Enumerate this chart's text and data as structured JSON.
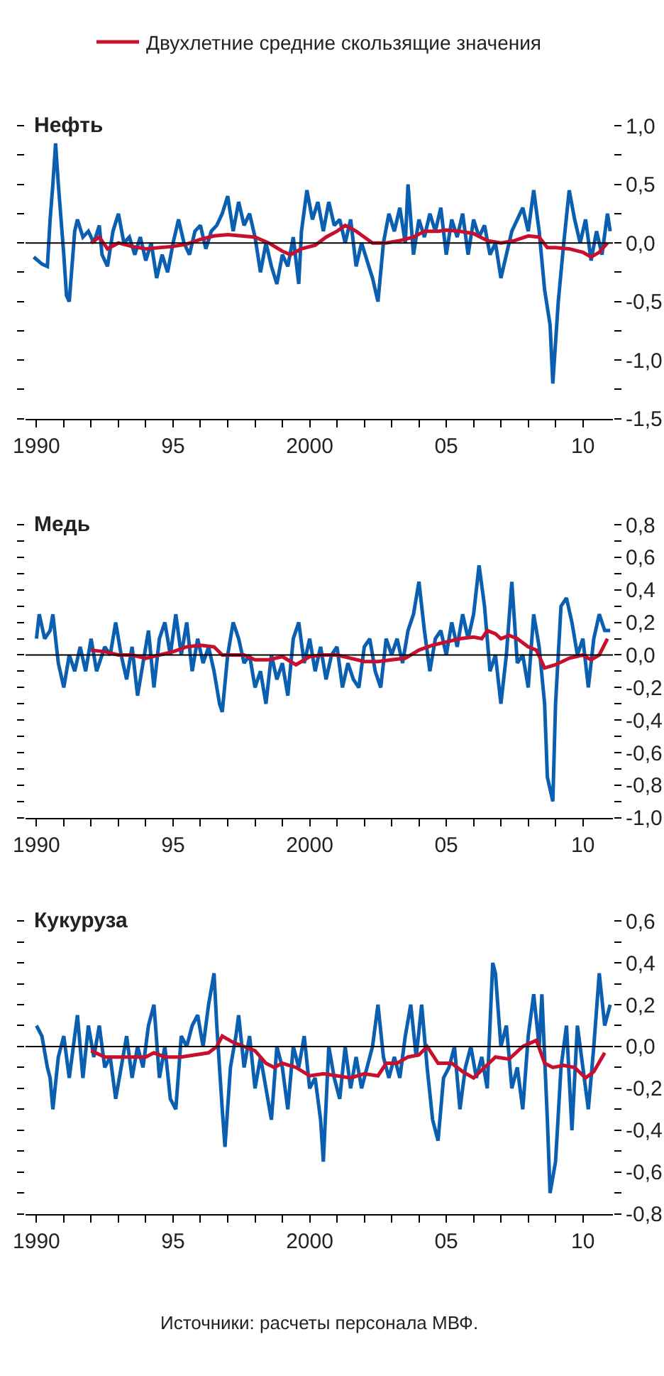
{
  "chart_data": [
    {
      "type": "line",
      "title": "Нефть",
      "legend": "top",
      "xlim": [
        1989.6,
        2011.1
      ],
      "ylim": [
        -1.5,
        1.0
      ],
      "xticks": [
        {
          "value": 1990,
          "label": "1990"
        },
        {
          "value": 1991,
          "label": null
        },
        {
          "value": 1992,
          "label": null
        },
        {
          "value": 1993,
          "label": null
        },
        {
          "value": 1994,
          "label": null
        },
        {
          "value": 1995,
          "label": "95"
        },
        {
          "value": 1996,
          "label": null
        },
        {
          "value": 1997,
          "label": null
        },
        {
          "value": 1998,
          "label": null
        },
        {
          "value": 1999,
          "label": null
        },
        {
          "value": 2000,
          "label": "2000"
        },
        {
          "value": 2001,
          "label": null
        },
        {
          "value": 2002,
          "label": null
        },
        {
          "value": 2003,
          "label": null
        },
        {
          "value": 2004,
          "label": null
        },
        {
          "value": 2005,
          "label": "05"
        },
        {
          "value": 2006,
          "label": null
        },
        {
          "value": 2007,
          "label": null
        },
        {
          "value": 2008,
          "label": null
        },
        {
          "value": 2009,
          "label": null
        },
        {
          "value": 2010,
          "label": "10"
        }
      ],
      "yticks": [
        {
          "value": 1.0,
          "label": "1,0"
        },
        {
          "value": 0.75,
          "label": null
        },
        {
          "value": 0.5,
          "label": "0,5"
        },
        {
          "value": 0.25,
          "label": null
        },
        {
          "value": 0,
          "label": "0,0"
        },
        {
          "value": -0.25,
          "label": null
        },
        {
          "value": -0.5,
          "label": "-0,5"
        },
        {
          "value": -0.75,
          "label": null
        },
        {
          "value": -1.0,
          "label": "-1,0"
        },
        {
          "value": -1.25,
          "label": null
        },
        {
          "value": -1.5,
          "label": "-1,5"
        }
      ],
      "ref_lines": [
        {
          "axis": "y",
          "value": 0,
          "color": "#000000"
        }
      ],
      "series": [
        {
          "color": "#0a5fb0",
          "x": [
            1989.9,
            1990.2,
            1990.4,
            1990.5,
            1990.6,
            1990.7,
            1990.8,
            1990.9,
            1991.0,
            1991.1,
            1991.2,
            1991.3,
            1991.4,
            1991.5,
            1991.7,
            1991.9,
            1992.1,
            1992.3,
            1992.4,
            1992.6,
            1992.8,
            1993.0,
            1993.2,
            1993.4,
            1993.6,
            1993.8,
            1994.0,
            1994.2,
            1994.4,
            1994.6,
            1994.8,
            1995.0,
            1995.2,
            1995.4,
            1995.6,
            1995.8,
            1996.0,
            1996.2,
            1996.4,
            1996.6,
            1996.8,
            1997.0,
            1997.2,
            1997.4,
            1997.6,
            1997.8,
            1998.0,
            1998.2,
            1998.4,
            1998.6,
            1998.8,
            1999.0,
            1999.2,
            1999.4,
            1999.6,
            1999.7,
            1999.9,
            2000.1,
            2000.3,
            2000.5,
            2000.7,
            2000.9,
            2001.1,
            2001.3,
            2001.5,
            2001.7,
            2001.9,
            2002.1,
            2002.3,
            2002.5,
            2002.7,
            2002.9,
            2003.1,
            2003.3,
            2003.5,
            2003.6,
            2003.8,
            2004.0,
            2004.2,
            2004.4,
            2004.6,
            2004.8,
            2005.0,
            2005.2,
            2005.4,
            2005.6,
            2005.8,
            2006.0,
            2006.2,
            2006.4,
            2006.6,
            2006.8,
            2007.0,
            2007.2,
            2007.4,
            2007.6,
            2007.8,
            2008.0,
            2008.2,
            2008.4,
            2008.6,
            2008.8,
            2008.9,
            2009.1,
            2009.3,
            2009.5,
            2009.7,
            2009.9,
            2010.1,
            2010.3,
            2010.5,
            2010.7,
            2010.9,
            2011.0
          ],
          "values": [
            -0.12,
            -0.18,
            -0.2,
            0.2,
            0.5,
            0.85,
            0.5,
            0.2,
            -0.1,
            -0.45,
            -0.5,
            -0.2,
            0.1,
            0.2,
            0.05,
            0.1,
            0.0,
            0.15,
            -0.1,
            -0.2,
            0.1,
            0.25,
            0.0,
            0.05,
            -0.1,
            0.05,
            -0.15,
            0.0,
            -0.3,
            -0.1,
            -0.25,
            0.0,
            0.2,
            0.0,
            -0.1,
            0.1,
            0.15,
            -0.05,
            0.1,
            0.15,
            0.25,
            0.4,
            0.1,
            0.35,
            0.15,
            0.25,
            0.05,
            -0.25,
            0.0,
            -0.2,
            -0.35,
            -0.1,
            -0.2,
            0.05,
            -0.35,
            0.1,
            0.45,
            0.2,
            0.35,
            0.1,
            0.35,
            0.15,
            0.2,
            0.0,
            0.2,
            -0.2,
            0.0,
            -0.15,
            -0.3,
            -0.5,
            0.0,
            0.25,
            0.1,
            0.3,
            0.0,
            0.5,
            -0.1,
            0.2,
            0.05,
            0.25,
            0.1,
            0.3,
            -0.1,
            0.2,
            0.05,
            0.25,
            -0.1,
            0.2,
            0.05,
            0.15,
            -0.1,
            0.0,
            -0.3,
            -0.1,
            0.1,
            0.2,
            0.3,
            0.1,
            0.45,
            0.1,
            -0.4,
            -0.7,
            -1.2,
            -0.5,
            0.0,
            0.45,
            0.2,
            0.0,
            0.2,
            -0.15,
            0.1,
            -0.1,
            0.25,
            0.1
          ]
        },
        {
          "name": "Двухлетние средние скользящие значения",
          "color": "#c8102e",
          "x": [
            1992.0,
            1992.3,
            1992.6,
            1993.0,
            1993.5,
            1994.0,
            1994.5,
            1995.0,
            1995.5,
            1996.0,
            1996.5,
            1997.0,
            1997.5,
            1998.0,
            1998.5,
            1999.0,
            1999.3,
            1999.7,
            2000.2,
            2000.6,
            2001.0,
            2001.3,
            2001.7,
            2002.0,
            2002.3,
            2002.8,
            2003.3,
            2003.8,
            2004.2,
            2004.7,
            2005.0,
            2005.5,
            2006.0,
            2006.5,
            2007.0,
            2007.5,
            2008.0,
            2008.4,
            2008.7,
            2009.0,
            2009.5,
            2010.0,
            2010.3,
            2010.6,
            2010.9
          ],
          "values": [
            0.0,
            0.05,
            -0.05,
            0.0,
            -0.03,
            -0.05,
            -0.04,
            -0.03,
            -0.01,
            0.03,
            0.06,
            0.07,
            0.06,
            0.05,
            0.0,
            -0.07,
            -0.1,
            -0.05,
            -0.02,
            0.05,
            0.1,
            0.15,
            0.1,
            0.05,
            0.0,
            0.0,
            0.02,
            0.05,
            0.1,
            0.1,
            0.11,
            0.1,
            0.08,
            0.02,
            0.0,
            0.02,
            0.06,
            0.05,
            -0.04,
            -0.04,
            -0.05,
            -0.08,
            -0.12,
            -0.08,
            0.0
          ]
        }
      ]
    },
    {
      "type": "line",
      "title": "Медь",
      "xlim": [
        1989.6,
        2011.1
      ],
      "ylim": [
        -1.0,
        0.8
      ],
      "xticks": [
        {
          "value": 1990,
          "label": "1990"
        },
        {
          "value": 1991,
          "label": null
        },
        {
          "value": 1992,
          "label": null
        },
        {
          "value": 1993,
          "label": null
        },
        {
          "value": 1994,
          "label": null
        },
        {
          "value": 1995,
          "label": "95"
        },
        {
          "value": 1996,
          "label": null
        },
        {
          "value": 1997,
          "label": null
        },
        {
          "value": 1998,
          "label": null
        },
        {
          "value": 1999,
          "label": null
        },
        {
          "value": 2000,
          "label": "2000"
        },
        {
          "value": 2001,
          "label": null
        },
        {
          "value": 2002,
          "label": null
        },
        {
          "value": 2003,
          "label": null
        },
        {
          "value": 2004,
          "label": null
        },
        {
          "value": 2005,
          "label": "05"
        },
        {
          "value": 2006,
          "label": null
        },
        {
          "value": 2007,
          "label": null
        },
        {
          "value": 2008,
          "label": null
        },
        {
          "value": 2009,
          "label": null
        },
        {
          "value": 2010,
          "label": "10"
        }
      ],
      "yticks": [
        {
          "value": 0.8,
          "label": "0,8"
        },
        {
          "value": 0.7,
          "label": null
        },
        {
          "value": 0.6,
          "label": "0,6"
        },
        {
          "value": 0.5,
          "label": null
        },
        {
          "value": 0.4,
          "label": "0,4"
        },
        {
          "value": 0.3,
          "label": null
        },
        {
          "value": 0.2,
          "label": "0,2"
        },
        {
          "value": 0.1,
          "label": null
        },
        {
          "value": 0,
          "label": "0,0"
        },
        {
          "value": -0.1,
          "label": null
        },
        {
          "value": -0.2,
          "label": "-0,2"
        },
        {
          "value": -0.3,
          "label": null
        },
        {
          "value": -0.4,
          "label": "-0,4"
        },
        {
          "value": -0.5,
          "label": null
        },
        {
          "value": -0.6,
          "label": "-0,6"
        },
        {
          "value": -0.7,
          "label": null
        },
        {
          "value": -0.8,
          "label": "-0,8"
        },
        {
          "value": -0.9,
          "label": null
        },
        {
          "value": -1.0,
          "label": "-1,0"
        }
      ],
      "ref_lines": [
        {
          "axis": "y",
          "value": 0,
          "color": "#000000"
        }
      ],
      "series": [
        {
          "color": "#0a5fb0",
          "x": [
            1990.0,
            1990.1,
            1990.3,
            1990.5,
            1990.6,
            1990.8,
            1991.0,
            1991.2,
            1991.4,
            1991.6,
            1991.8,
            1992.0,
            1992.2,
            1992.5,
            1992.7,
            1992.9,
            1993.1,
            1993.3,
            1993.5,
            1993.7,
            1993.9,
            1994.1,
            1994.3,
            1994.5,
            1994.7,
            1994.9,
            1995.1,
            1995.3,
            1995.5,
            1995.7,
            1995.9,
            1996.1,
            1996.3,
            1996.5,
            1996.7,
            1996.8,
            1997.0,
            1997.2,
            1997.4,
            1997.6,
            1997.8,
            1998.0,
            1998.2,
            1998.4,
            1998.6,
            1998.8,
            1999.0,
            1999.2,
            1999.4,
            1999.6,
            1999.8,
            2000.0,
            2000.2,
            2000.4,
            2000.6,
            2000.8,
            2001.0,
            2001.2,
            2001.4,
            2001.6,
            2001.8,
            2002.0,
            2002.2,
            2002.4,
            2002.6,
            2002.8,
            2003.0,
            2003.2,
            2003.4,
            2003.6,
            2003.8,
            2004.0,
            2004.2,
            2004.4,
            2004.6,
            2004.8,
            2005.0,
            2005.2,
            2005.4,
            2005.6,
            2005.8,
            2006.0,
            2006.2,
            2006.4,
            2006.6,
            2006.8,
            2007.0,
            2007.2,
            2007.4,
            2007.6,
            2007.8,
            2008.0,
            2008.2,
            2008.4,
            2008.6,
            2008.7,
            2008.9,
            2009.0,
            2009.2,
            2009.4,
            2009.6,
            2009.8,
            2010.0,
            2010.2,
            2010.4,
            2010.6,
            2010.8,
            2011.0
          ],
          "values": [
            0.1,
            0.25,
            0.1,
            0.15,
            0.25,
            -0.05,
            -0.2,
            0.0,
            -0.1,
            0.05,
            -0.1,
            0.1,
            -0.1,
            0.05,
            0.0,
            0.2,
            0.0,
            -0.15,
            0.05,
            -0.25,
            -0.05,
            0.15,
            -0.2,
            0.1,
            0.2,
            0.0,
            0.25,
            0.0,
            0.2,
            -0.1,
            0.1,
            -0.05,
            0.05,
            -0.1,
            -0.3,
            -0.35,
            0.0,
            0.2,
            0.1,
            -0.05,
            0.0,
            -0.2,
            -0.1,
            -0.3,
            0.0,
            -0.15,
            -0.05,
            -0.25,
            0.1,
            0.2,
            -0.05,
            0.1,
            -0.1,
            0.05,
            -0.15,
            0.0,
            0.05,
            -0.2,
            -0.05,
            -0.15,
            -0.2,
            0.05,
            0.1,
            -0.1,
            -0.2,
            0.1,
            0.0,
            0.1,
            -0.05,
            0.15,
            0.25,
            0.45,
            0.15,
            -0.1,
            0.1,
            0.15,
            0.0,
            0.2,
            0.05,
            0.25,
            0.1,
            0.25,
            0.55,
            0.3,
            -0.1,
            0.0,
            -0.3,
            0.0,
            0.45,
            -0.05,
            0.0,
            -0.2,
            0.25,
            0.05,
            -0.3,
            -0.75,
            -0.9,
            -0.3,
            0.3,
            0.35,
            0.2,
            0.0,
            0.1,
            -0.2,
            0.1,
            0.25,
            0.15,
            0.15
          ]
        },
        {
          "color": "#c8102e",
          "x": [
            1992.0,
            1992.5,
            1993.0,
            1993.5,
            1994.0,
            1994.5,
            1995.0,
            1995.5,
            1996.0,
            1996.5,
            1996.8,
            1997.2,
            1997.6,
            1998.0,
            1998.5,
            1999.0,
            1999.5,
            2000.0,
            2000.5,
            2001.0,
            2001.5,
            2002.0,
            2002.5,
            2003.0,
            2003.5,
            2004.0,
            2004.5,
            2005.0,
            2005.5,
            2006.0,
            2006.3,
            2006.5,
            2006.8,
            2007.0,
            2007.3,
            2007.6,
            2008.0,
            2008.3,
            2008.6,
            2009.0,
            2009.5,
            2010.0,
            2010.3,
            2010.6,
            2010.9
          ],
          "values": [
            0.03,
            0.02,
            0.0,
            0.0,
            -0.02,
            0.0,
            0.02,
            0.05,
            0.06,
            0.05,
            0.0,
            0.0,
            0.0,
            -0.03,
            -0.03,
            -0.01,
            -0.06,
            -0.01,
            0.0,
            0.0,
            -0.02,
            -0.04,
            -0.04,
            -0.03,
            -0.02,
            0.03,
            0.06,
            0.08,
            0.1,
            0.11,
            0.1,
            0.15,
            0.13,
            0.1,
            0.12,
            0.1,
            0.05,
            0.03,
            -0.08,
            -0.06,
            -0.02,
            0.0,
            -0.03,
            0.0,
            0.1
          ]
        }
      ]
    },
    {
      "type": "line",
      "title": "Кукуруза",
      "xlim": [
        1989.6,
        2011.1
      ],
      "ylim": [
        -0.8,
        0.6
      ],
      "xticks": [
        {
          "value": 1990,
          "label": "1990"
        },
        {
          "value": 1991,
          "label": null
        },
        {
          "value": 1992,
          "label": null
        },
        {
          "value": 1993,
          "label": null
        },
        {
          "value": 1994,
          "label": null
        },
        {
          "value": 1995,
          "label": "95"
        },
        {
          "value": 1996,
          "label": null
        },
        {
          "value": 1997,
          "label": null
        },
        {
          "value": 1998,
          "label": null
        },
        {
          "value": 1999,
          "label": null
        },
        {
          "value": 2000,
          "label": "2000"
        },
        {
          "value": 2001,
          "label": null
        },
        {
          "value": 2002,
          "label": null
        },
        {
          "value": 2003,
          "label": null
        },
        {
          "value": 2004,
          "label": null
        },
        {
          "value": 2005,
          "label": "05"
        },
        {
          "value": 2006,
          "label": null
        },
        {
          "value": 2007,
          "label": null
        },
        {
          "value": 2008,
          "label": null
        },
        {
          "value": 2009,
          "label": null
        },
        {
          "value": 2010,
          "label": "10"
        }
      ],
      "yticks": [
        {
          "value": 0.6,
          "label": "0,6"
        },
        {
          "value": 0.5,
          "label": null
        },
        {
          "value": 0.4,
          "label": "0,4"
        },
        {
          "value": 0.3,
          "label": null
        },
        {
          "value": 0.2,
          "label": "0,2"
        },
        {
          "value": 0.1,
          "label": null
        },
        {
          "value": 0,
          "label": "0,0"
        },
        {
          "value": -0.1,
          "label": null
        },
        {
          "value": -0.2,
          "label": "-0,2"
        },
        {
          "value": -0.3,
          "label": null
        },
        {
          "value": -0.4,
          "label": "-0,4"
        },
        {
          "value": -0.5,
          "label": null
        },
        {
          "value": -0.6,
          "label": "-0,6"
        },
        {
          "value": -0.7,
          "label": null
        },
        {
          "value": -0.8,
          "label": "-0,8"
        }
      ],
      "ref_lines": [
        {
          "axis": "y",
          "value": 0,
          "color": "#000000"
        }
      ],
      "annotations": [
        "Источники: расчеты персонала МВФ."
      ],
      "series": [
        {
          "color": "#0a5fb0",
          "x": [
            1990.0,
            1990.2,
            1990.4,
            1990.5,
            1990.6,
            1990.8,
            1991.0,
            1991.2,
            1991.4,
            1991.5,
            1991.7,
            1991.9,
            1992.1,
            1992.3,
            1992.5,
            1992.7,
            1992.9,
            1993.1,
            1993.3,
            1993.5,
            1993.7,
            1993.9,
            1994.1,
            1994.3,
            1994.5,
            1994.7,
            1994.9,
            1995.1,
            1995.3,
            1995.5,
            1995.7,
            1995.9,
            1996.1,
            1996.3,
            1996.5,
            1996.6,
            1996.8,
            1996.9,
            1997.1,
            1997.3,
            1997.4,
            1997.6,
            1997.8,
            1998.0,
            1998.2,
            1998.4,
            1998.6,
            1998.8,
            1999.0,
            1999.2,
            1999.4,
            1999.6,
            1999.8,
            2000.0,
            2000.2,
            2000.4,
            2000.5,
            2000.7,
            2000.9,
            2001.1,
            2001.3,
            2001.5,
            2001.7,
            2001.9,
            2002.1,
            2002.3,
            2002.5,
            2002.7,
            2002.9,
            2003.1,
            2003.3,
            2003.5,
            2003.7,
            2003.9,
            2004.1,
            2004.3,
            2004.5,
            2004.7,
            2004.9,
            2005.1,
            2005.3,
            2005.5,
            2005.7,
            2005.9,
            2006.1,
            2006.3,
            2006.5,
            2006.7,
            2006.8,
            2007.0,
            2007.2,
            2007.4,
            2007.6,
            2007.8,
            2008.0,
            2008.2,
            2008.4,
            2008.5,
            2008.7,
            2008.8,
            2009.0,
            2009.2,
            2009.4,
            2009.6,
            2009.8,
            2010.0,
            2010.2,
            2010.4,
            2010.6,
            2010.8,
            2011.0
          ],
          "values": [
            0.1,
            0.05,
            -0.1,
            -0.15,
            -0.3,
            -0.05,
            0.05,
            -0.15,
            0.05,
            0.15,
            -0.15,
            0.1,
            -0.05,
            0.1,
            -0.1,
            -0.05,
            -0.25,
            -0.1,
            0.05,
            -0.15,
            0.0,
            -0.1,
            0.1,
            0.2,
            -0.15,
            0.0,
            -0.25,
            -0.3,
            0.05,
            0.0,
            0.1,
            0.15,
            0.0,
            0.2,
            0.35,
            0.1,
            -0.3,
            -0.48,
            -0.1,
            0.05,
            0.15,
            -0.1,
            0.05,
            -0.2,
            -0.05,
            -0.2,
            -0.35,
            0.0,
            -0.1,
            -0.3,
            0.0,
            -0.1,
            0.05,
            -0.2,
            -0.15,
            -0.35,
            -0.55,
            0.0,
            -0.15,
            -0.25,
            0.0,
            -0.2,
            -0.05,
            -0.2,
            -0.1,
            0.0,
            0.2,
            -0.05,
            -0.15,
            -0.05,
            -0.15,
            0.05,
            0.2,
            -0.05,
            0.2,
            -0.1,
            -0.35,
            -0.45,
            -0.15,
            -0.1,
            0.0,
            -0.3,
            -0.1,
            0.0,
            -0.15,
            -0.05,
            -0.2,
            0.4,
            0.35,
            0.0,
            0.1,
            -0.2,
            -0.1,
            -0.3,
            0.05,
            0.25,
            0.0,
            0.25,
            -0.35,
            -0.7,
            -0.55,
            -0.1,
            0.1,
            -0.4,
            0.1,
            -0.1,
            -0.3,
            0.0,
            0.35,
            0.1,
            0.2
          ]
        },
        {
          "color": "#c8102e",
          "x": [
            1992.0,
            1992.5,
            1993.0,
            1993.5,
            1994.0,
            1994.3,
            1994.7,
            1995.3,
            1995.8,
            1996.3,
            1996.6,
            1996.8,
            1997.2,
            1997.6,
            1998.0,
            1998.4,
            1998.7,
            1999.0,
            1999.5,
            2000.0,
            2000.5,
            2001.0,
            2001.5,
            2002.0,
            2002.5,
            2002.8,
            2003.2,
            2003.6,
            2004.0,
            2004.3,
            2004.7,
            2005.2,
            2005.6,
            2006.0,
            2006.4,
            2006.8,
            2007.3,
            2007.8,
            2008.3,
            2008.6,
            2008.9,
            2009.3,
            2009.7,
            2010.1,
            2010.4,
            2010.8
          ],
          "values": [
            -0.02,
            -0.05,
            -0.05,
            -0.05,
            -0.05,
            -0.03,
            -0.05,
            -0.05,
            -0.04,
            -0.03,
            0.0,
            0.05,
            0.02,
            0.0,
            -0.02,
            -0.08,
            -0.1,
            -0.08,
            -0.1,
            -0.14,
            -0.13,
            -0.14,
            -0.15,
            -0.13,
            -0.14,
            -0.08,
            -0.08,
            -0.05,
            -0.04,
            0.0,
            -0.08,
            -0.08,
            -0.12,
            -0.15,
            -0.1,
            -0.05,
            -0.06,
            0.0,
            0.03,
            -0.08,
            -0.1,
            -0.09,
            -0.1,
            -0.15,
            -0.12,
            -0.03
          ]
        }
      ]
    }
  ]
}
